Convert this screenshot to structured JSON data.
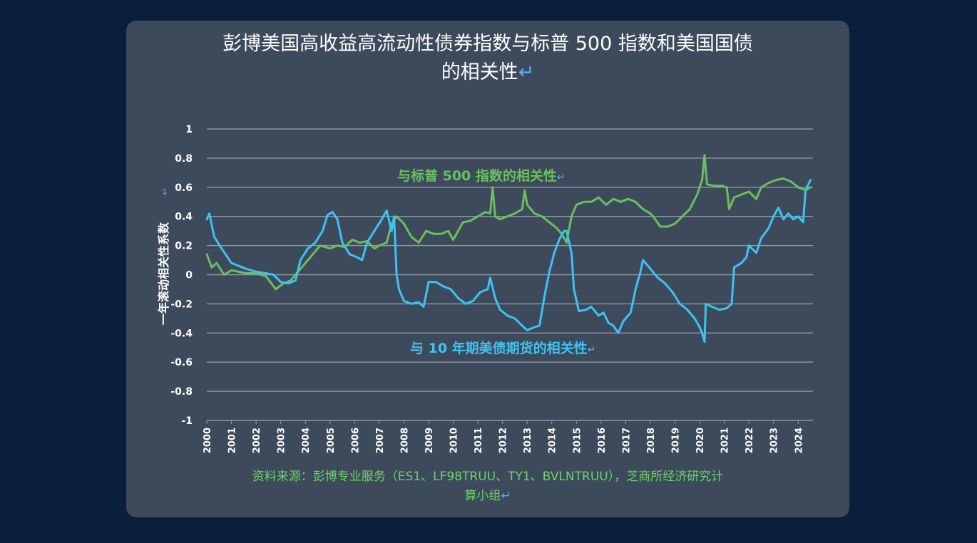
{
  "title": {
    "line1": "彭博美国高收益高流动性债券指数与标普 500 指数和美国国债",
    "line2": "的相关性",
    "para_mark": "↵"
  },
  "source": {
    "line1": "资料来源：彭博专业服务（ES1、LF98TRUU、TY1、BVLNTRUU），芝商所经济研究计",
    "line2": "算小组"
  },
  "colors": {
    "background": "#0b1e3c",
    "panel": "#3d4a5b",
    "sp500": "#6abf5e",
    "treasury": "#3ec3f0",
    "source_text": "#6dd36a",
    "para_mark": "#5aa8ff"
  },
  "chart_data": {
    "type": "line",
    "ylabel": "一年滚动相关性系数",
    "ylim": [
      -1,
      1
    ],
    "y_ticks": [
      "1",
      "0.8",
      "0.6",
      "0.4",
      "0.2",
      "0",
      "-0.2",
      "-0.4",
      "-0.6",
      "-0.8",
      "-1"
    ],
    "x_ticks": [
      "2000",
      "2001",
      "2002",
      "2003",
      "2004",
      "2005",
      "2006",
      "2007",
      "2008",
      "2009",
      "2010",
      "2011",
      "2012",
      "2013",
      "2014",
      "2015",
      "2016",
      "2017",
      "2018",
      "2019",
      "2020",
      "2021",
      "2022",
      "2023",
      "2024"
    ],
    "xlim": [
      2000,
      2024.6
    ],
    "grid": true,
    "series": [
      {
        "name": "与标普 500 指数的相关性",
        "color": "#6abf5e",
        "points": [
          [
            2000.0,
            0.14
          ],
          [
            2000.2,
            0.05
          ],
          [
            2000.4,
            0.08
          ],
          [
            2000.7,
            0.0
          ],
          [
            2001.0,
            0.03
          ],
          [
            2001.3,
            0.02
          ],
          [
            2001.6,
            0.01
          ],
          [
            2002.0,
            0.01
          ],
          [
            2002.4,
            -0.01
          ],
          [
            2002.8,
            -0.1
          ],
          [
            2003.1,
            -0.06
          ],
          [
            2003.4,
            -0.04
          ],
          [
            2003.7,
            0.02
          ],
          [
            2004.0,
            0.08
          ],
          [
            2004.3,
            0.14
          ],
          [
            2004.6,
            0.2
          ],
          [
            2005.0,
            0.18
          ],
          [
            2005.3,
            0.2
          ],
          [
            2005.6,
            0.19
          ],
          [
            2005.9,
            0.24
          ],
          [
            2006.2,
            0.22
          ],
          [
            2006.5,
            0.23
          ],
          [
            2006.8,
            0.18
          ],
          [
            2007.0,
            0.2
          ],
          [
            2007.3,
            0.22
          ],
          [
            2007.5,
            0.35
          ],
          [
            2007.7,
            0.4
          ],
          [
            2008.0,
            0.35
          ],
          [
            2008.3,
            0.26
          ],
          [
            2008.6,
            0.22
          ],
          [
            2008.9,
            0.3
          ],
          [
            2009.2,
            0.28
          ],
          [
            2009.5,
            0.28
          ],
          [
            2009.8,
            0.3
          ],
          [
            2010.0,
            0.24
          ],
          [
            2010.2,
            0.3
          ],
          [
            2010.4,
            0.36
          ],
          [
            2010.7,
            0.37
          ],
          [
            2011.0,
            0.4
          ],
          [
            2011.3,
            0.43
          ],
          [
            2011.5,
            0.42
          ],
          [
            2011.6,
            0.6
          ],
          [
            2011.7,
            0.4
          ],
          [
            2011.9,
            0.38
          ],
          [
            2012.2,
            0.4
          ],
          [
            2012.5,
            0.42
          ],
          [
            2012.8,
            0.45
          ],
          [
            2012.9,
            0.58
          ],
          [
            2013.0,
            0.48
          ],
          [
            2013.3,
            0.42
          ],
          [
            2013.6,
            0.4
          ],
          [
            2013.9,
            0.36
          ],
          [
            2014.2,
            0.32
          ],
          [
            2014.4,
            0.28
          ],
          [
            2014.6,
            0.22
          ],
          [
            2014.8,
            0.4
          ],
          [
            2015.0,
            0.48
          ],
          [
            2015.3,
            0.5
          ],
          [
            2015.6,
            0.5
          ],
          [
            2015.9,
            0.53
          ],
          [
            2016.2,
            0.48
          ],
          [
            2016.5,
            0.52
          ],
          [
            2016.8,
            0.5
          ],
          [
            2017.1,
            0.52
          ],
          [
            2017.4,
            0.5
          ],
          [
            2017.7,
            0.45
          ],
          [
            2018.0,
            0.42
          ],
          [
            2018.2,
            0.38
          ],
          [
            2018.4,
            0.33
          ],
          [
            2018.7,
            0.33
          ],
          [
            2019.0,
            0.35
          ],
          [
            2019.3,
            0.4
          ],
          [
            2019.6,
            0.45
          ],
          [
            2019.9,
            0.55
          ],
          [
            2020.1,
            0.65
          ],
          [
            2020.2,
            0.82
          ],
          [
            2020.3,
            0.62
          ],
          [
            2020.6,
            0.61
          ],
          [
            2020.9,
            0.61
          ],
          [
            2021.1,
            0.6
          ],
          [
            2021.2,
            0.45
          ],
          [
            2021.4,
            0.53
          ],
          [
            2021.7,
            0.55
          ],
          [
            2022.0,
            0.57
          ],
          [
            2022.3,
            0.52
          ],
          [
            2022.5,
            0.6
          ],
          [
            2022.8,
            0.63
          ],
          [
            2023.1,
            0.65
          ],
          [
            2023.4,
            0.66
          ],
          [
            2023.7,
            0.64
          ],
          [
            2024.0,
            0.6
          ],
          [
            2024.3,
            0.58
          ],
          [
            2024.5,
            0.6
          ]
        ]
      },
      {
        "name": "与 10 年期美债期货的相关性",
        "color": "#3ec3f0",
        "points": [
          [
            2000.0,
            0.38
          ],
          [
            2000.1,
            0.42
          ],
          [
            2000.3,
            0.26
          ],
          [
            2000.6,
            0.18
          ],
          [
            2001.0,
            0.08
          ],
          [
            2001.3,
            0.06
          ],
          [
            2001.6,
            0.04
          ],
          [
            2002.0,
            0.02
          ],
          [
            2002.4,
            0.01
          ],
          [
            2002.7,
            0.0
          ],
          [
            2003.0,
            -0.05
          ],
          [
            2003.3,
            -0.06
          ],
          [
            2003.6,
            -0.04
          ],
          [
            2003.8,
            0.1
          ],
          [
            2004.1,
            0.18
          ],
          [
            2004.4,
            0.22
          ],
          [
            2004.7,
            0.3
          ],
          [
            2004.9,
            0.41
          ],
          [
            2005.1,
            0.43
          ],
          [
            2005.3,
            0.38
          ],
          [
            2005.5,
            0.22
          ],
          [
            2005.8,
            0.14
          ],
          [
            2006.1,
            0.12
          ],
          [
            2006.3,
            0.1
          ],
          [
            2006.5,
            0.22
          ],
          [
            2006.8,
            0.3
          ],
          [
            2007.1,
            0.38
          ],
          [
            2007.3,
            0.44
          ],
          [
            2007.5,
            0.3
          ],
          [
            2007.6,
            0.4
          ],
          [
            2007.7,
            0.0
          ],
          [
            2007.8,
            -0.1
          ],
          [
            2008.0,
            -0.18
          ],
          [
            2008.3,
            -0.2
          ],
          [
            2008.6,
            -0.19
          ],
          [
            2008.8,
            -0.22
          ],
          [
            2009.0,
            -0.05
          ],
          [
            2009.3,
            -0.05
          ],
          [
            2009.6,
            -0.08
          ],
          [
            2009.9,
            -0.1
          ],
          [
            2010.2,
            -0.16
          ],
          [
            2010.5,
            -0.2
          ],
          [
            2010.8,
            -0.18
          ],
          [
            2011.1,
            -0.12
          ],
          [
            2011.4,
            -0.1
          ],
          [
            2011.5,
            -0.02
          ],
          [
            2011.7,
            -0.16
          ],
          [
            2011.9,
            -0.24
          ],
          [
            2012.2,
            -0.28
          ],
          [
            2012.5,
            -0.3
          ],
          [
            2012.8,
            -0.35
          ],
          [
            2013.0,
            -0.38
          ],
          [
            2013.3,
            -0.36
          ],
          [
            2013.5,
            -0.35
          ],
          [
            2013.7,
            -0.15
          ],
          [
            2013.9,
            0.02
          ],
          [
            2014.1,
            0.15
          ],
          [
            2014.3,
            0.24
          ],
          [
            2014.5,
            0.3
          ],
          [
            2014.6,
            0.3
          ],
          [
            2014.8,
            0.15
          ],
          [
            2014.9,
            -0.1
          ],
          [
            2015.1,
            -0.25
          ],
          [
            2015.4,
            -0.24
          ],
          [
            2015.6,
            -0.22
          ],
          [
            2015.9,
            -0.28
          ],
          [
            2016.1,
            -0.26
          ],
          [
            2016.3,
            -0.33
          ],
          [
            2016.5,
            -0.35
          ],
          [
            2016.7,
            -0.4
          ],
          [
            2016.9,
            -0.32
          ],
          [
            2017.2,
            -0.26
          ],
          [
            2017.4,
            -0.1
          ],
          [
            2017.6,
            0.02
          ],
          [
            2017.7,
            0.1
          ],
          [
            2017.9,
            0.06
          ],
          [
            2018.1,
            0.02
          ],
          [
            2018.3,
            -0.02
          ],
          [
            2018.6,
            -0.06
          ],
          [
            2018.9,
            -0.12
          ],
          [
            2019.2,
            -0.2
          ],
          [
            2019.5,
            -0.24
          ],
          [
            2019.8,
            -0.3
          ],
          [
            2020.0,
            -0.36
          ],
          [
            2020.1,
            -0.4
          ],
          [
            2020.2,
            -0.46
          ],
          [
            2020.25,
            -0.2
          ],
          [
            2020.5,
            -0.22
          ],
          [
            2020.8,
            -0.24
          ],
          [
            2021.1,
            -0.23
          ],
          [
            2021.3,
            -0.2
          ],
          [
            2021.4,
            0.05
          ],
          [
            2021.7,
            0.08
          ],
          [
            2021.9,
            0.12
          ],
          [
            2022.0,
            0.2
          ],
          [
            2022.3,
            0.15
          ],
          [
            2022.5,
            0.25
          ],
          [
            2022.8,
            0.32
          ],
          [
            2023.0,
            0.4
          ],
          [
            2023.2,
            0.46
          ],
          [
            2023.4,
            0.38
          ],
          [
            2023.6,
            0.42
          ],
          [
            2023.8,
            0.38
          ],
          [
            2024.0,
            0.4
          ],
          [
            2024.2,
            0.36
          ],
          [
            2024.3,
            0.58
          ],
          [
            2024.5,
            0.65
          ]
        ]
      }
    ],
    "annotations": [
      {
        "text": "与标普 500 指数的相关性",
        "series": 0
      },
      {
        "text": "与 10 年期美债期货的相关性",
        "series": 1
      }
    ]
  }
}
